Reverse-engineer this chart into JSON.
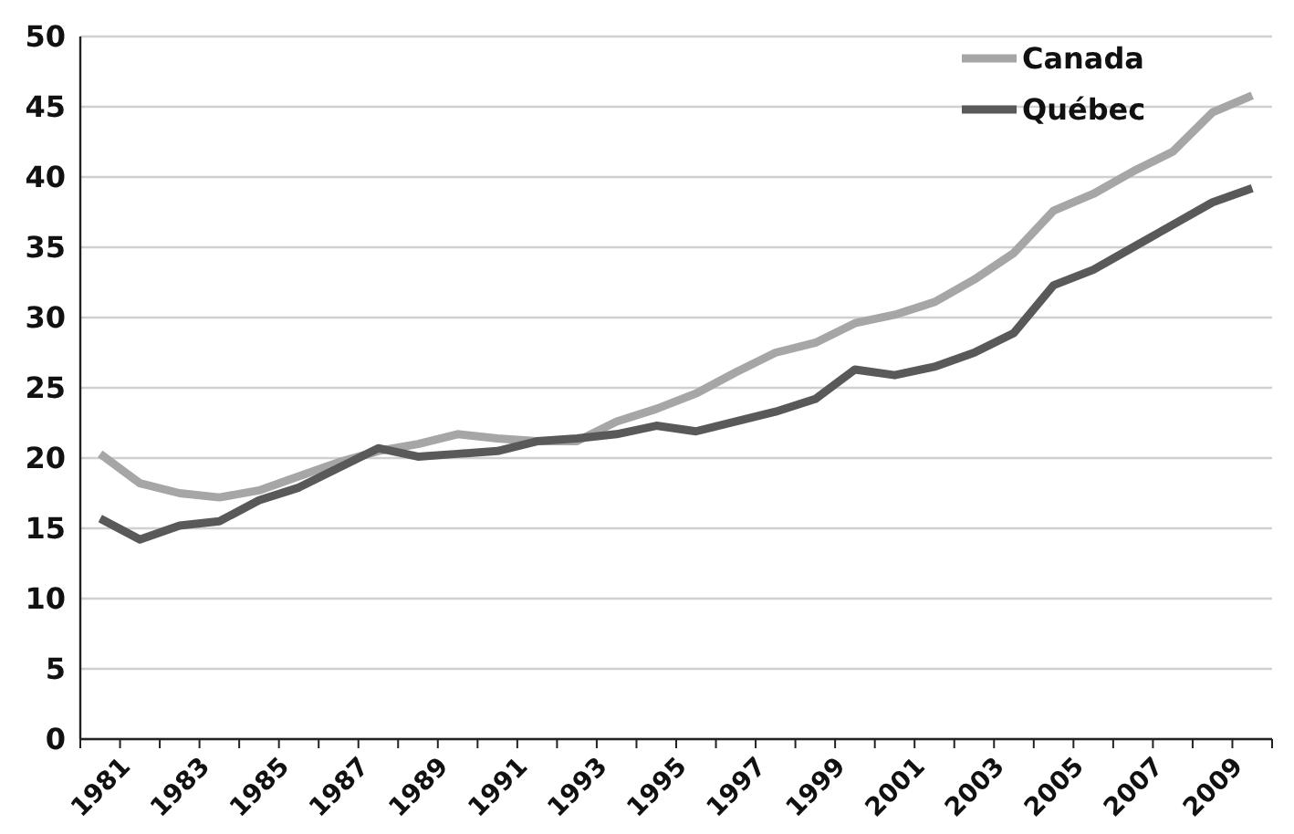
{
  "chart_data": {
    "type": "line",
    "categories": [
      "1981",
      null,
      "1983",
      null,
      "1985",
      null,
      "1987",
      null,
      "1989",
      null,
      "1991",
      null,
      "1993",
      null,
      "1995",
      null,
      "1997",
      null,
      "1999",
      null,
      "2001",
      null,
      "2003",
      null,
      "2005",
      null,
      "2007",
      null,
      "2009",
      null
    ],
    "series": [
      {
        "name": "Canada",
        "color": "#a6a6a6",
        "values": [
          20.3,
          18.2,
          17.5,
          17.2,
          17.7,
          18.7,
          19.7,
          20.5,
          21.0,
          21.7,
          21.4,
          21.2,
          21.2,
          22.6,
          23.5,
          24.6,
          26.1,
          27.5,
          28.2,
          29.6,
          30.2,
          31.1,
          32.7,
          34.6,
          37.6,
          38.8,
          40.4,
          41.8,
          44.6,
          45.8
        ]
      },
      {
        "name": "Québec",
        "color": "#595959",
        "values": [
          15.7,
          14.2,
          15.2,
          15.5,
          17.0,
          17.9,
          19.3,
          20.7,
          20.1,
          20.3,
          20.5,
          21.2,
          21.4,
          21.7,
          22.3,
          21.9,
          22.6,
          23.3,
          24.2,
          26.3,
          25.9,
          26.5,
          27.5,
          28.9,
          32.3,
          33.4,
          35.0,
          36.6,
          38.2,
          39.2
        ]
      }
    ],
    "ylim": [
      0,
      50
    ],
    "yticks": [
      0,
      5,
      10,
      15,
      20,
      25,
      30,
      35,
      40,
      45,
      50
    ],
    "grid": "y",
    "legend": "top right",
    "marker": "none",
    "line_style": "solid"
  }
}
